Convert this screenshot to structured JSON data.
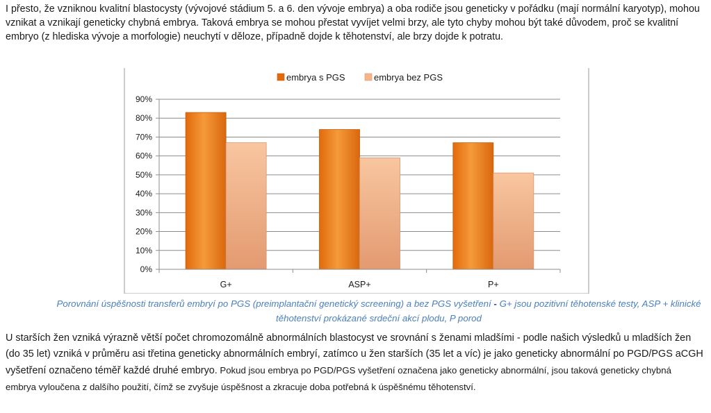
{
  "intro_text": "I přesto, že vzniknou kvalitní blastocysty (vývojové stádium 5. a 6. den vývoje embrya) a oba rodiče jsou geneticky v pořádku (mají normální karyotyp), mohou vznikat a vznikají geneticky chybná embrya. Taková embrya se mohou přestat vyvíjet velmi brzy, ale tyto chyby mohou být také důvodem, proč se kvalitní embryo (z hlediska vývoje a morfologie) neuchytí v děloze, případně dojde k těhotenství, ale brzy dojde k potratu.",
  "caption": {
    "part1": "Porovnání úspěšnosti transferů embryí po PGS (preimplantační genetický screening) a bez PGS vyšetření",
    "dash": " - ",
    "part2": "G+ jsou pozitivní těhotenské testy, ASP + klinické těhotenství prokázané srdeční akcí plodu, P porod"
  },
  "outro_text": {
    "main": "U starších žen vzniká výrazně větší počet chromozomálně abnormálních blastocyst ve srovnání s ženami mladšími - podle našich výsledků u mladších žen (do 35 let) vzniká v průměru asi třetina geneticky abnormálních embryí, zatímco u žen starších (35 let a víc) je jako geneticky abnormální po PGD/PGS aCGH vyšetření označeno téměř každé druhé embryo.",
    "small": " Pokud jsou embrya po PGD/PGS vyšetření označena jako geneticky abnormální, jsou taková geneticky chybná embrya vyloučena z dalšího použití, čímž se zvyšuje úspěšnost a zkracuje doba potřebná k úspěšnému těhotenství."
  },
  "chart_data": {
    "type": "bar",
    "categories": [
      "G+",
      "ASP+",
      "P+"
    ],
    "series": [
      {
        "name": "embrya s PGS",
        "values": [
          83,
          74,
          67
        ],
        "color": "#e8761a"
      },
      {
        "name": "embrya bez PGS",
        "values": [
          67,
          59,
          51
        ],
        "color": "#f5b58a"
      }
    ],
    "ylim": [
      0,
      90
    ],
    "yticks": [
      "0%",
      "10%",
      "20%",
      "30%",
      "40%",
      "50%",
      "60%",
      "70%",
      "80%",
      "90%"
    ],
    "value_format": "percent",
    "legend_position": "top",
    "grid": true
  }
}
